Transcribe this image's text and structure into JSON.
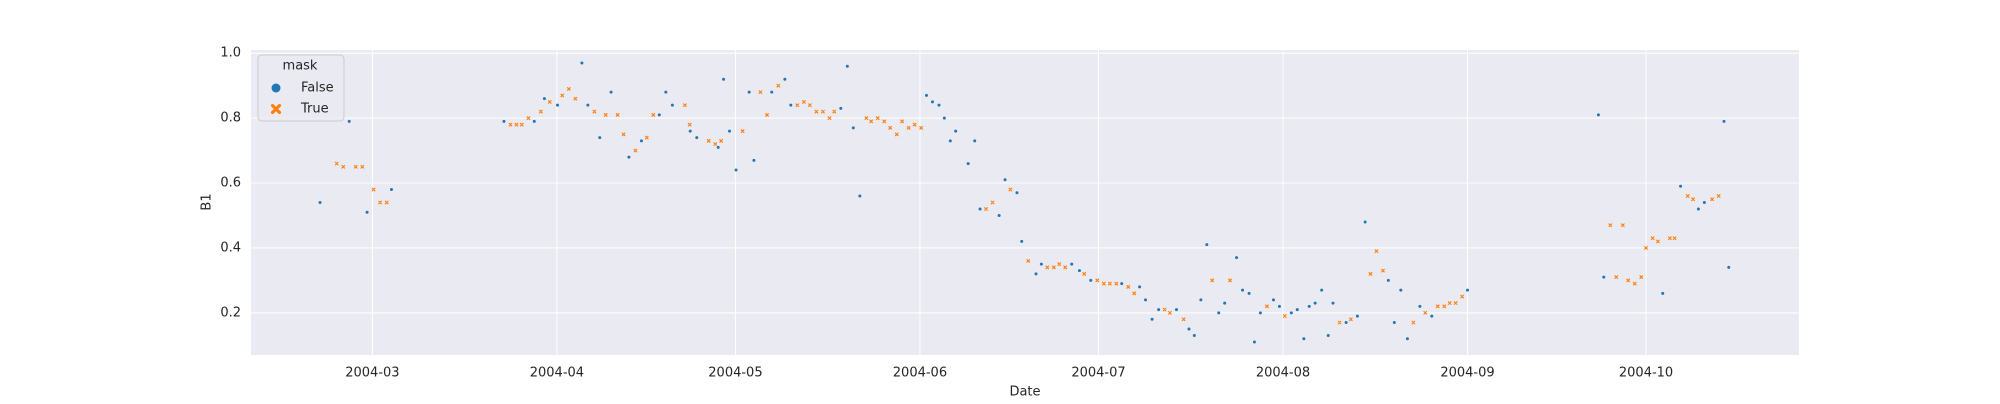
{
  "chart_data": {
    "type": "scatter",
    "xlabel": "Date",
    "ylabel": "B1",
    "legend_title": "mask",
    "legend": "upper left",
    "grid": true,
    "xlim": [
      40.6,
      300.7
    ],
    "ylim": [
      0.07,
      1.01
    ],
    "xticks": [
      {
        "value": 61,
        "label": "2004-03"
      },
      {
        "value": 92,
        "label": "2004-04"
      },
      {
        "value": 122,
        "label": "2004-05"
      },
      {
        "value": 153,
        "label": "2004-06"
      },
      {
        "value": 183,
        "label": "2004-07"
      },
      {
        "value": 214,
        "label": "2004-08"
      },
      {
        "value": 245,
        "label": "2004-09"
      },
      {
        "value": 275,
        "label": "2004-10"
      }
    ],
    "yticks": [
      0.2,
      0.4,
      0.6,
      0.8,
      {
        "value": 1,
        "label": "1.0"
      }
    ],
    "series": [
      {
        "name": "False",
        "color": "#1f77b4",
        "marker": "o",
        "x": [
          52.2,
          57.1,
          60.1,
          64.2,
          83.1,
          88.2,
          89.9,
          92.1,
          96.2,
          97.2,
          99.2,
          101.1,
          104.1,
          106.2,
          109.2,
          110.3,
          111.4,
          114.4,
          115.5,
          119.1,
          120.0,
          121.0,
          122.1,
          124.3,
          125.1,
          128.1,
          130.3,
          131.3,
          139.7,
          140.8,
          141.8,
          142.9,
          154.1,
          155.1,
          156.2,
          157.1,
          158.1,
          159.0,
          161.1,
          162.2,
          163.1,
          166.3,
          167.3,
          169.3,
          170.1,
          172.5,
          173.4,
          178.5,
          179.8,
          181.7,
          186.9,
          189.9,
          190.9,
          192.0,
          193.1,
          196.1,
          198.2,
          199.1,
          200.2,
          201.2,
          203.2,
          204.2,
          206.2,
          207.2,
          208.3,
          209.2,
          210.2,
          212.4,
          213.4,
          215.4,
          216.4,
          217.5,
          218.4,
          219.4,
          220.5,
          221.6,
          222.4,
          224.6,
          226.5,
          227.8,
          231.7,
          232.7,
          233.8,
          234.9,
          237.0,
          239.0,
          245.0,
          267.0,
          267.9,
          277.8,
          280.8,
          283.8,
          284.8,
          288.1,
          288.9
        ],
        "values": [
          0.54,
          0.79,
          0.51,
          0.58,
          0.79,
          0.79,
          0.86,
          0.84,
          0.97,
          0.84,
          0.74,
          0.88,
          0.68,
          0.73,
          0.81,
          0.88,
          0.84,
          0.76,
          0.74,
          0.71,
          0.92,
          0.76,
          0.64,
          0.88,
          0.67,
          0.88,
          0.92,
          0.84,
          0.83,
          0.96,
          0.77,
          0.56,
          0.87,
          0.85,
          0.84,
          0.8,
          0.73,
          0.76,
          0.66,
          0.73,
          0.52,
          0.5,
          0.61,
          0.57,
          0.42,
          0.32,
          0.35,
          0.35,
          0.33,
          0.3,
          0.29,
          0.28,
          0.24,
          0.18,
          0.21,
          0.21,
          0.15,
          0.13,
          0.24,
          0.41,
          0.2,
          0.23,
          0.37,
          0.27,
          0.26,
          0.11,
          0.2,
          0.24,
          0.22,
          0.2,
          0.21,
          0.12,
          0.22,
          0.23,
          0.27,
          0.13,
          0.23,
          0.17,
          0.19,
          0.48,
          0.3,
          0.17,
          0.27,
          0.12,
          0.22,
          0.19,
          0.27,
          0.81,
          0.31,
          0.26,
          0.59,
          0.52,
          0.54,
          0.79,
          0.34
        ]
      },
      {
        "name": "True",
        "color": "#ff7f0e",
        "marker": "X",
        "x": [
          55.0,
          56.1,
          58.2,
          59.3,
          61.2,
          62.3,
          63.4,
          84.2,
          85.2,
          86.1,
          87.2,
          89.3,
          90.8,
          92.9,
          94.0,
          95.1,
          98.3,
          100.2,
          102.2,
          103.2,
          105.2,
          107.1,
          108.2,
          113.5,
          114.3,
          117.5,
          118.6,
          119.6,
          123.2,
          126.2,
          127.3,
          129.2,
          132.4,
          133.5,
          134.5,
          135.6,
          136.7,
          137.8,
          138.6,
          144.0,
          144.8,
          145.9,
          147.0,
          148.0,
          149.1,
          150.0,
          151.1,
          152.1,
          153.2,
          164.1,
          165.2,
          168.2,
          171.2,
          174.4,
          175.5,
          176.4,
          177.4,
          180.6,
          182.8,
          183.9,
          184.9,
          186.0,
          188.0,
          189.0,
          194.1,
          195.0,
          197.3,
          202.1,
          205.1,
          211.3,
          214.3,
          223.5,
          225.4,
          228.7,
          229.7,
          230.8,
          235.9,
          237.9,
          240.0,
          241.1,
          242.0,
          243.0,
          244.1,
          269.0,
          270.0,
          271.1,
          272.0,
          273.1,
          274.2,
          275.0,
          276.1,
          277.0,
          279.0,
          279.8,
          282.0,
          282.9,
          286.1,
          287.2
        ],
        "values": [
          0.66,
          0.65,
          0.65,
          0.65,
          0.58,
          0.54,
          0.54,
          0.78,
          0.78,
          0.78,
          0.8,
          0.82,
          0.85,
          0.87,
          0.89,
          0.86,
          0.82,
          0.81,
          0.81,
          0.75,
          0.7,
          0.74,
          0.81,
          0.84,
          0.78,
          0.73,
          0.72,
          0.73,
          0.76,
          0.88,
          0.81,
          0.9,
          0.84,
          0.85,
          0.84,
          0.82,
          0.82,
          0.8,
          0.82,
          0.8,
          0.79,
          0.8,
          0.79,
          0.77,
          0.75,
          0.79,
          0.77,
          0.78,
          0.77,
          0.52,
          0.54,
          0.58,
          0.36,
          0.34,
          0.34,
          0.35,
          0.34,
          0.32,
          0.3,
          0.29,
          0.29,
          0.29,
          0.28,
          0.26,
          0.21,
          0.2,
          0.18,
          0.3,
          0.3,
          0.22,
          0.19,
          0.17,
          0.18,
          0.32,
          0.39,
          0.33,
          0.17,
          0.2,
          0.22,
          0.22,
          0.23,
          0.23,
          0.25,
          0.47,
          0.31,
          0.47,
          0.3,
          0.29,
          0.31,
          0.4,
          0.43,
          0.42,
          0.43,
          0.43,
          0.56,
          0.55,
          0.55,
          0.56
        ]
      }
    ]
  }
}
